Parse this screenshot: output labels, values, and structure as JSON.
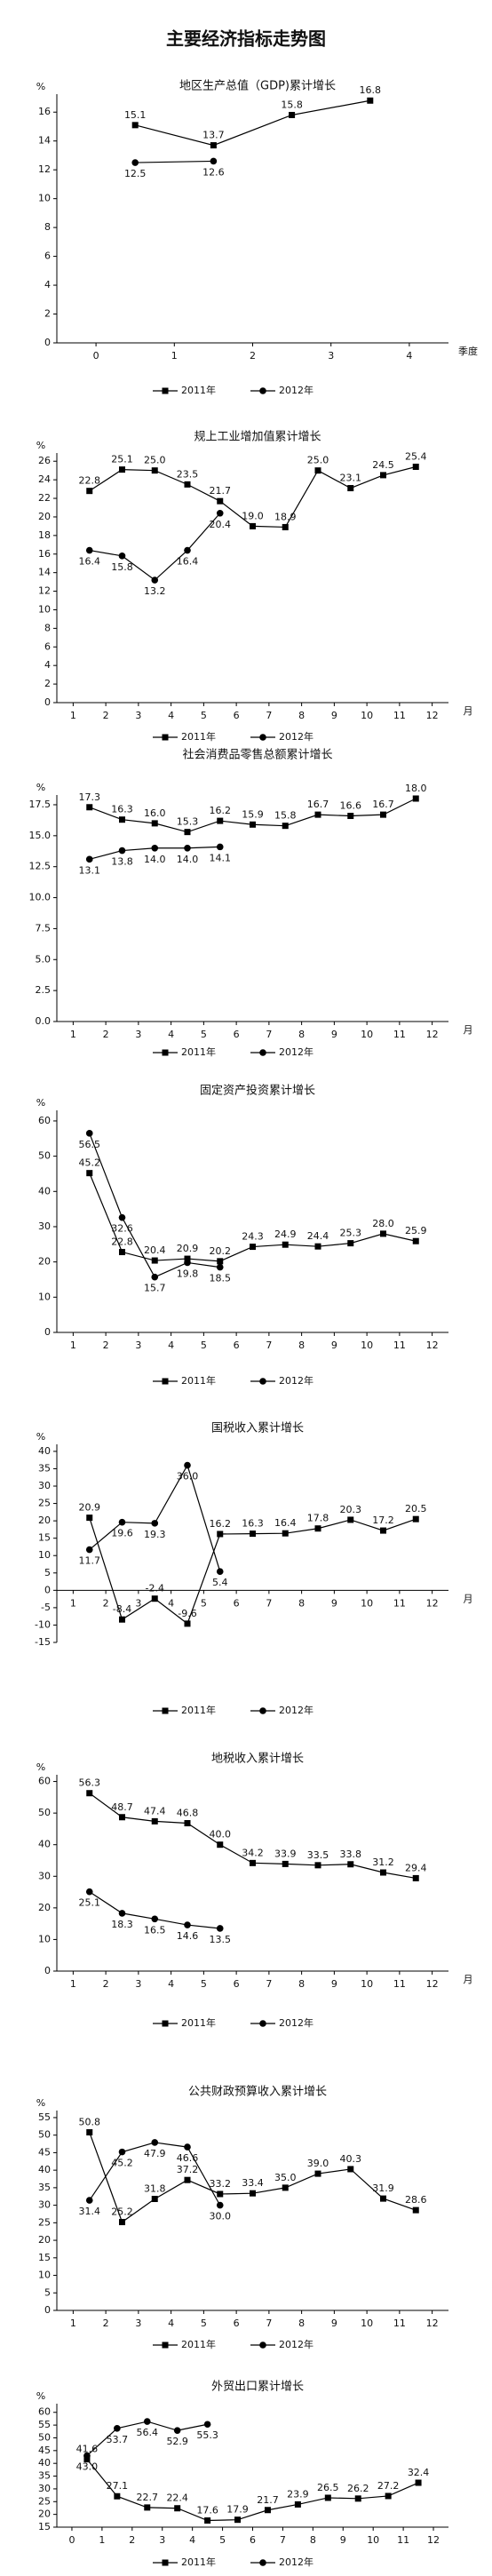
{
  "title": "主要经济指标走势图",
  "chart_data": [
    {
      "type": "line",
      "title": "地区生产总值（GDP)累计增长",
      "y_unit": "%",
      "x_unit": "季度",
      "xlim": [
        -0.5,
        4.5
      ],
      "ylim": [
        0,
        17
      ],
      "xticks": [
        0,
        1,
        2,
        3,
        4
      ],
      "yticks": [
        0,
        2,
        4,
        6,
        8,
        10,
        12,
        14,
        16
      ],
      "series": [
        {
          "name": "2011年",
          "color": "#000000",
          "marker": "square",
          "x": [
            0.5,
            1.5,
            2.5,
            3.5
          ],
          "values": [
            15.1,
            13.7,
            15.8,
            16.8
          ]
        },
        {
          "name": "2012年",
          "color": "#000000",
          "marker": "circle",
          "x": [
            0.5,
            1.5
          ],
          "values": [
            12.5,
            12.6
          ]
        }
      ]
    },
    {
      "type": "line",
      "title": "规上工业增加值累计增长",
      "y_unit": "%",
      "x_unit": "月",
      "xlim": [
        0.5,
        12.5
      ],
      "ylim": [
        0,
        26.5
      ],
      "xticks": [
        1,
        2,
        3,
        4,
        5,
        6,
        7,
        8,
        9,
        10,
        11,
        12
      ],
      "yticks": [
        0,
        2,
        4,
        6,
        8,
        10,
        12,
        14,
        16,
        18,
        20,
        22,
        24,
        26
      ],
      "series": [
        {
          "name": "2011年",
          "color": "#000000",
          "marker": "square",
          "x": [
            1.5,
            2.5,
            3.5,
            4.5,
            5.5,
            6.5,
            7.5,
            8.5,
            9.5,
            10.5,
            11.5
          ],
          "values": [
            22.8,
            25.1,
            25.0,
            23.5,
            21.7,
            19.0,
            18.9,
            25.0,
            23.1,
            24.5,
            25.4
          ],
          "value_labels": [
            "22.8",
            "25.1",
            "25.0",
            "23.5",
            "21.7",
            "19.0",
            "18.9",
            "25.0",
            "23.1",
            "24.5",
            "25.4"
          ]
        },
        {
          "name": "2012年",
          "color": "#000000",
          "marker": "circle",
          "x": [
            1.5,
            2.5,
            3.5,
            4.5,
            5.5
          ],
          "values": [
            16.4,
            15.8,
            13.2,
            16.4,
            20.4
          ]
        }
      ]
    },
    {
      "type": "line",
      "title": "社会消费品零售总额累计增长",
      "y_unit": "%",
      "x_unit": "月",
      "xlim": [
        0.5,
        12.5
      ],
      "ylim": [
        0,
        18
      ],
      "xticks": [
        1,
        2,
        3,
        4,
        5,
        6,
        7,
        8,
        9,
        10,
        11,
        12
      ],
      "yticks": [
        {
          "value": 0,
          "label": "0.0"
        },
        2.5,
        {
          "value": 5,
          "label": "5.0"
        },
        7.5,
        {
          "value": 10,
          "label": "10.0"
        },
        12.5,
        {
          "value": 15,
          "label": "15.0"
        },
        17.5
      ],
      "series": [
        {
          "name": "2011年",
          "color": "#000000",
          "marker": "square",
          "x": [
            1.5,
            2.5,
            3.5,
            4.5,
            5.5,
            6.5,
            7.5,
            8.5,
            9.5,
            10.5,
            11.5
          ],
          "values": [
            17.3,
            16.3,
            16.0,
            15.3,
            16.2,
            15.9,
            15.8,
            16.7,
            16.6,
            16.7,
            18.0
          ],
          "value_labels": [
            "17.3",
            "16.3",
            "16.0",
            "15.3",
            "16.2",
            "15.9",
            "15.8",
            "16.7",
            "16.6",
            "16.7",
            "18.0"
          ]
        },
        {
          "name": "2012年",
          "color": "#000000",
          "marker": "circle",
          "x": [
            1.5,
            2.5,
            3.5,
            4.5,
            5.5
          ],
          "values": [
            13.1,
            13.8,
            14.0,
            14.0,
            14.1
          ],
          "value_labels": [
            "13.1",
            "13.8",
            "14.0",
            "14.0",
            "14.1"
          ]
        }
      ]
    },
    {
      "type": "line",
      "title": "固定资产投资累计增长",
      "y_unit": "%",
      "xlim": [
        0.5,
        12.5
      ],
      "ylim": [
        0,
        62
      ],
      "xticks": [
        1,
        2,
        3,
        4,
        5,
        6,
        7,
        8,
        9,
        10,
        11,
        12
      ],
      "yticks": [
        0,
        10,
        20,
        30,
        40,
        50,
        60
      ],
      "series": [
        {
          "name": "2011年",
          "color": "#000000",
          "marker": "square",
          "x": [
            1.5,
            2.5,
            3.5,
            4.5,
            5.5,
            6.5,
            7.5,
            8.5,
            9.5,
            10.5,
            11.5
          ],
          "values": [
            45.2,
            22.8,
            20.4,
            20.9,
            20.2,
            24.3,
            24.9,
            24.4,
            25.3,
            28.0,
            25.9
          ],
          "value_labels": [
            "45.2",
            "22.8",
            "20.4",
            "20.9",
            "20.2",
            "24.3",
            "24.9",
            "24.4",
            "25.3",
            "28.0",
            "25.9"
          ]
        },
        {
          "name": "2012年",
          "color": "#000000",
          "marker": "circle",
          "x": [
            1.5,
            2.5,
            3.5,
            4.5,
            5.5
          ],
          "values": [
            56.5,
            32.6,
            15.7,
            19.8,
            18.5
          ]
        }
      ]
    },
    {
      "type": "line",
      "title": "国税收入累计增长",
      "y_unit": "%",
      "x_unit": "月",
      "xlim": [
        0.5,
        12.5
      ],
      "ylim": [
        -15,
        41
      ],
      "xticks": [
        1,
        2,
        3,
        4,
        5,
        6,
        7,
        8,
        9,
        10,
        11,
        12
      ],
      "yticks": [
        -15,
        -10,
        -5,
        0,
        5,
        10,
        15,
        20,
        25,
        30,
        35,
        40
      ],
      "series": [
        {
          "name": "2011年",
          "color": "#000000",
          "marker": "square",
          "x": [
            1.5,
            2.5,
            3.5,
            4.5,
            5.5,
            6.5,
            7.5,
            8.5,
            9.5,
            10.5,
            11.5
          ],
          "values": [
            20.9,
            -8.4,
            -2.4,
            -9.6,
            16.2,
            16.3,
            16.4,
            17.8,
            20.3,
            17.2,
            20.5
          ]
        },
        {
          "name": "2012年",
          "color": "#000000",
          "marker": "circle",
          "x": [
            1.5,
            2.5,
            3.5,
            4.5,
            5.5
          ],
          "values": [
            11.7,
            19.6,
            19.3,
            36.0,
            5.4
          ],
          "value_labels": [
            "11.7",
            "19.6",
            "19.3",
            "36.0",
            "5.4"
          ]
        }
      ]
    },
    {
      "type": "line",
      "title": "地税收入累计增长",
      "y_unit": "%",
      "x_unit": "月",
      "xlim": [
        0.5,
        12.5
      ],
      "ylim": [
        0,
        61
      ],
      "xticks": [
        1,
        2,
        3,
        4,
        5,
        6,
        7,
        8,
        9,
        10,
        11,
        12
      ],
      "yticks": [
        0,
        10,
        20,
        30,
        40,
        50,
        60
      ],
      "series": [
        {
          "name": "2011年",
          "color": "#000000",
          "marker": "square",
          "x": [
            1.5,
            2.5,
            3.5,
            4.5,
            5.5,
            6.5,
            7.5,
            8.5,
            9.5,
            10.5,
            11.5
          ],
          "values": [
            56.3,
            48.7,
            47.4,
            46.8,
            40.0,
            34.2,
            33.9,
            33.5,
            33.8,
            31.2,
            29.4
          ],
          "value_labels": [
            "56.3",
            "48.7",
            "47.4",
            "46.8",
            "40.0",
            "34.2",
            "33.9",
            "33.5",
            "33.8",
            "31.2",
            "29.4"
          ]
        },
        {
          "name": "2012年",
          "color": "#000000",
          "marker": "circle",
          "x": [
            1.5,
            2.5,
            3.5,
            4.5,
            5.5
          ],
          "values": [
            25.1,
            18.3,
            16.5,
            14.6,
            13.5
          ]
        }
      ]
    },
    {
      "type": "line",
      "title": "公共财政预算收入累计增长",
      "y_unit": "%",
      "xlim": [
        0.5,
        12.5
      ],
      "ylim": [
        0,
        56
      ],
      "xticks": [
        1,
        2,
        3,
        4,
        5,
        6,
        7,
        8,
        9,
        10,
        11,
        12
      ],
      "yticks": [
        0,
        5,
        10,
        15,
        20,
        25,
        30,
        35,
        40,
        45,
        50,
        55
      ],
      "series": [
        {
          "name": "2011年",
          "color": "#000000",
          "marker": "square",
          "x": [
            1.5,
            2.5,
            3.5,
            4.5,
            5.5,
            6.5,
            7.5,
            8.5,
            9.5,
            10.5,
            11.5
          ],
          "values": [
            50.8,
            25.2,
            31.8,
            37.2,
            33.2,
            33.4,
            35.0,
            39.0,
            40.3,
            31.9,
            28.6
          ],
          "value_labels": [
            "50.8",
            "25.2",
            "31.8",
            "37.2",
            "33.2",
            "33.4",
            "35.0",
            "39.0",
            "40.3",
            "31.9",
            "28.6"
          ]
        },
        {
          "name": "2012年",
          "color": "#000000",
          "marker": "circle",
          "x": [
            1.5,
            2.5,
            3.5,
            4.5,
            5.5
          ],
          "values": [
            31.4,
            45.2,
            47.9,
            46.6,
            30.0
          ],
          "value_labels": [
            "31.4",
            "45.2",
            "47.9",
            "46.6",
            "30.0"
          ]
        }
      ]
    },
    {
      "type": "line",
      "title": "外贸出口累计增长",
      "y_unit": "%",
      "xlim": [
        -0.5,
        12.5
      ],
      "ylim": [
        15,
        62
      ],
      "xticks": [
        0,
        1,
        2,
        3,
        4,
        5,
        6,
        7,
        8,
        9,
        10,
        11,
        12
      ],
      "yticks": [
        15,
        20,
        25,
        30,
        35,
        40,
        45,
        50,
        55,
        60
      ],
      "series": [
        {
          "name": "2011年",
          "color": "#000000",
          "marker": "square",
          "x": [
            0.5,
            1.5,
            2.5,
            3.5,
            4.5,
            5.5,
            6.5,
            7.5,
            8.5,
            9.5,
            10.5,
            11.5
          ],
          "values": [
            41.6,
            27.1,
            22.7,
            22.4,
            17.6,
            17.9,
            21.7,
            23.9,
            26.5,
            26.2,
            27.2,
            32.4
          ]
        },
        {
          "name": "2012年",
          "color": "#000000",
          "marker": "circle",
          "x": [
            0.5,
            1.5,
            2.5,
            3.5,
            4.5
          ],
          "values": [
            43.0,
            53.7,
            56.4,
            52.9,
            55.3
          ],
          "value_labels": [
            "43.0",
            "53.7",
            "56.4",
            "52.9",
            "55.3"
          ]
        }
      ]
    }
  ]
}
